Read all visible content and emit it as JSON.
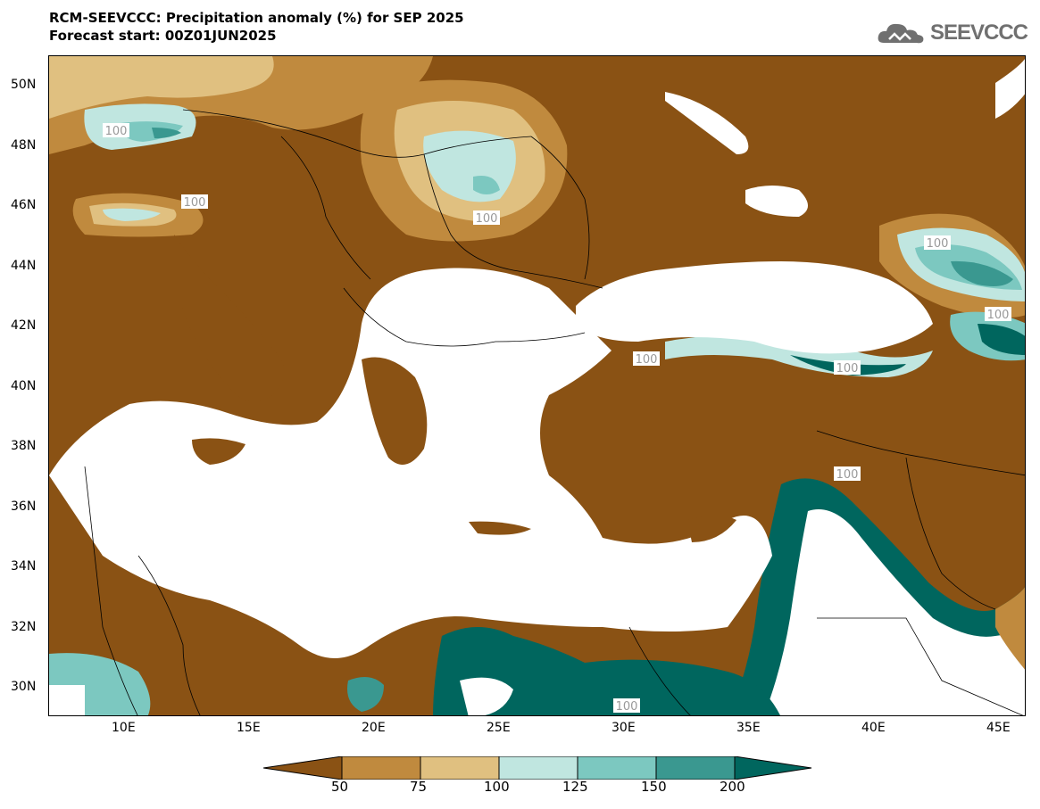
{
  "header": {
    "title_line1": "RCM-SEEVCCC: Precipitation anomaly (%) for SEP 2025",
    "title_line2": "Forecast start: 00Z01JUN2025"
  },
  "logo": {
    "text": "SEEVCCC",
    "icon": "cloud-icon"
  },
  "axes": {
    "lat_labels": [
      "50N",
      "48N",
      "46N",
      "44N",
      "42N",
      "40N",
      "38N",
      "36N",
      "34N",
      "32N",
      "30N"
    ],
    "lon_labels": [
      "10E",
      "15E",
      "20E",
      "25E",
      "30E",
      "35E",
      "40E",
      "45E"
    ]
  },
  "legend": {
    "levels": [
      "50",
      "75",
      "100",
      "125",
      "150",
      "200"
    ],
    "colors": [
      "#8a5214",
      "#c08a3e",
      "#e0c080",
      "#c0e6e0",
      "#7cc8c0",
      "#3a9890",
      "#00665e"
    ]
  },
  "contour_label": "100",
  "colors": {
    "dry_dark": "#8a5214",
    "dry_mid": "#c08a3e",
    "dry_light": "#e0c080",
    "wet_light": "#c0e6e0",
    "wet_mid": "#7cc8c0",
    "wet_dark": "#3a9890",
    "wet_darkest": "#00665e",
    "sea": "#ffffff"
  }
}
